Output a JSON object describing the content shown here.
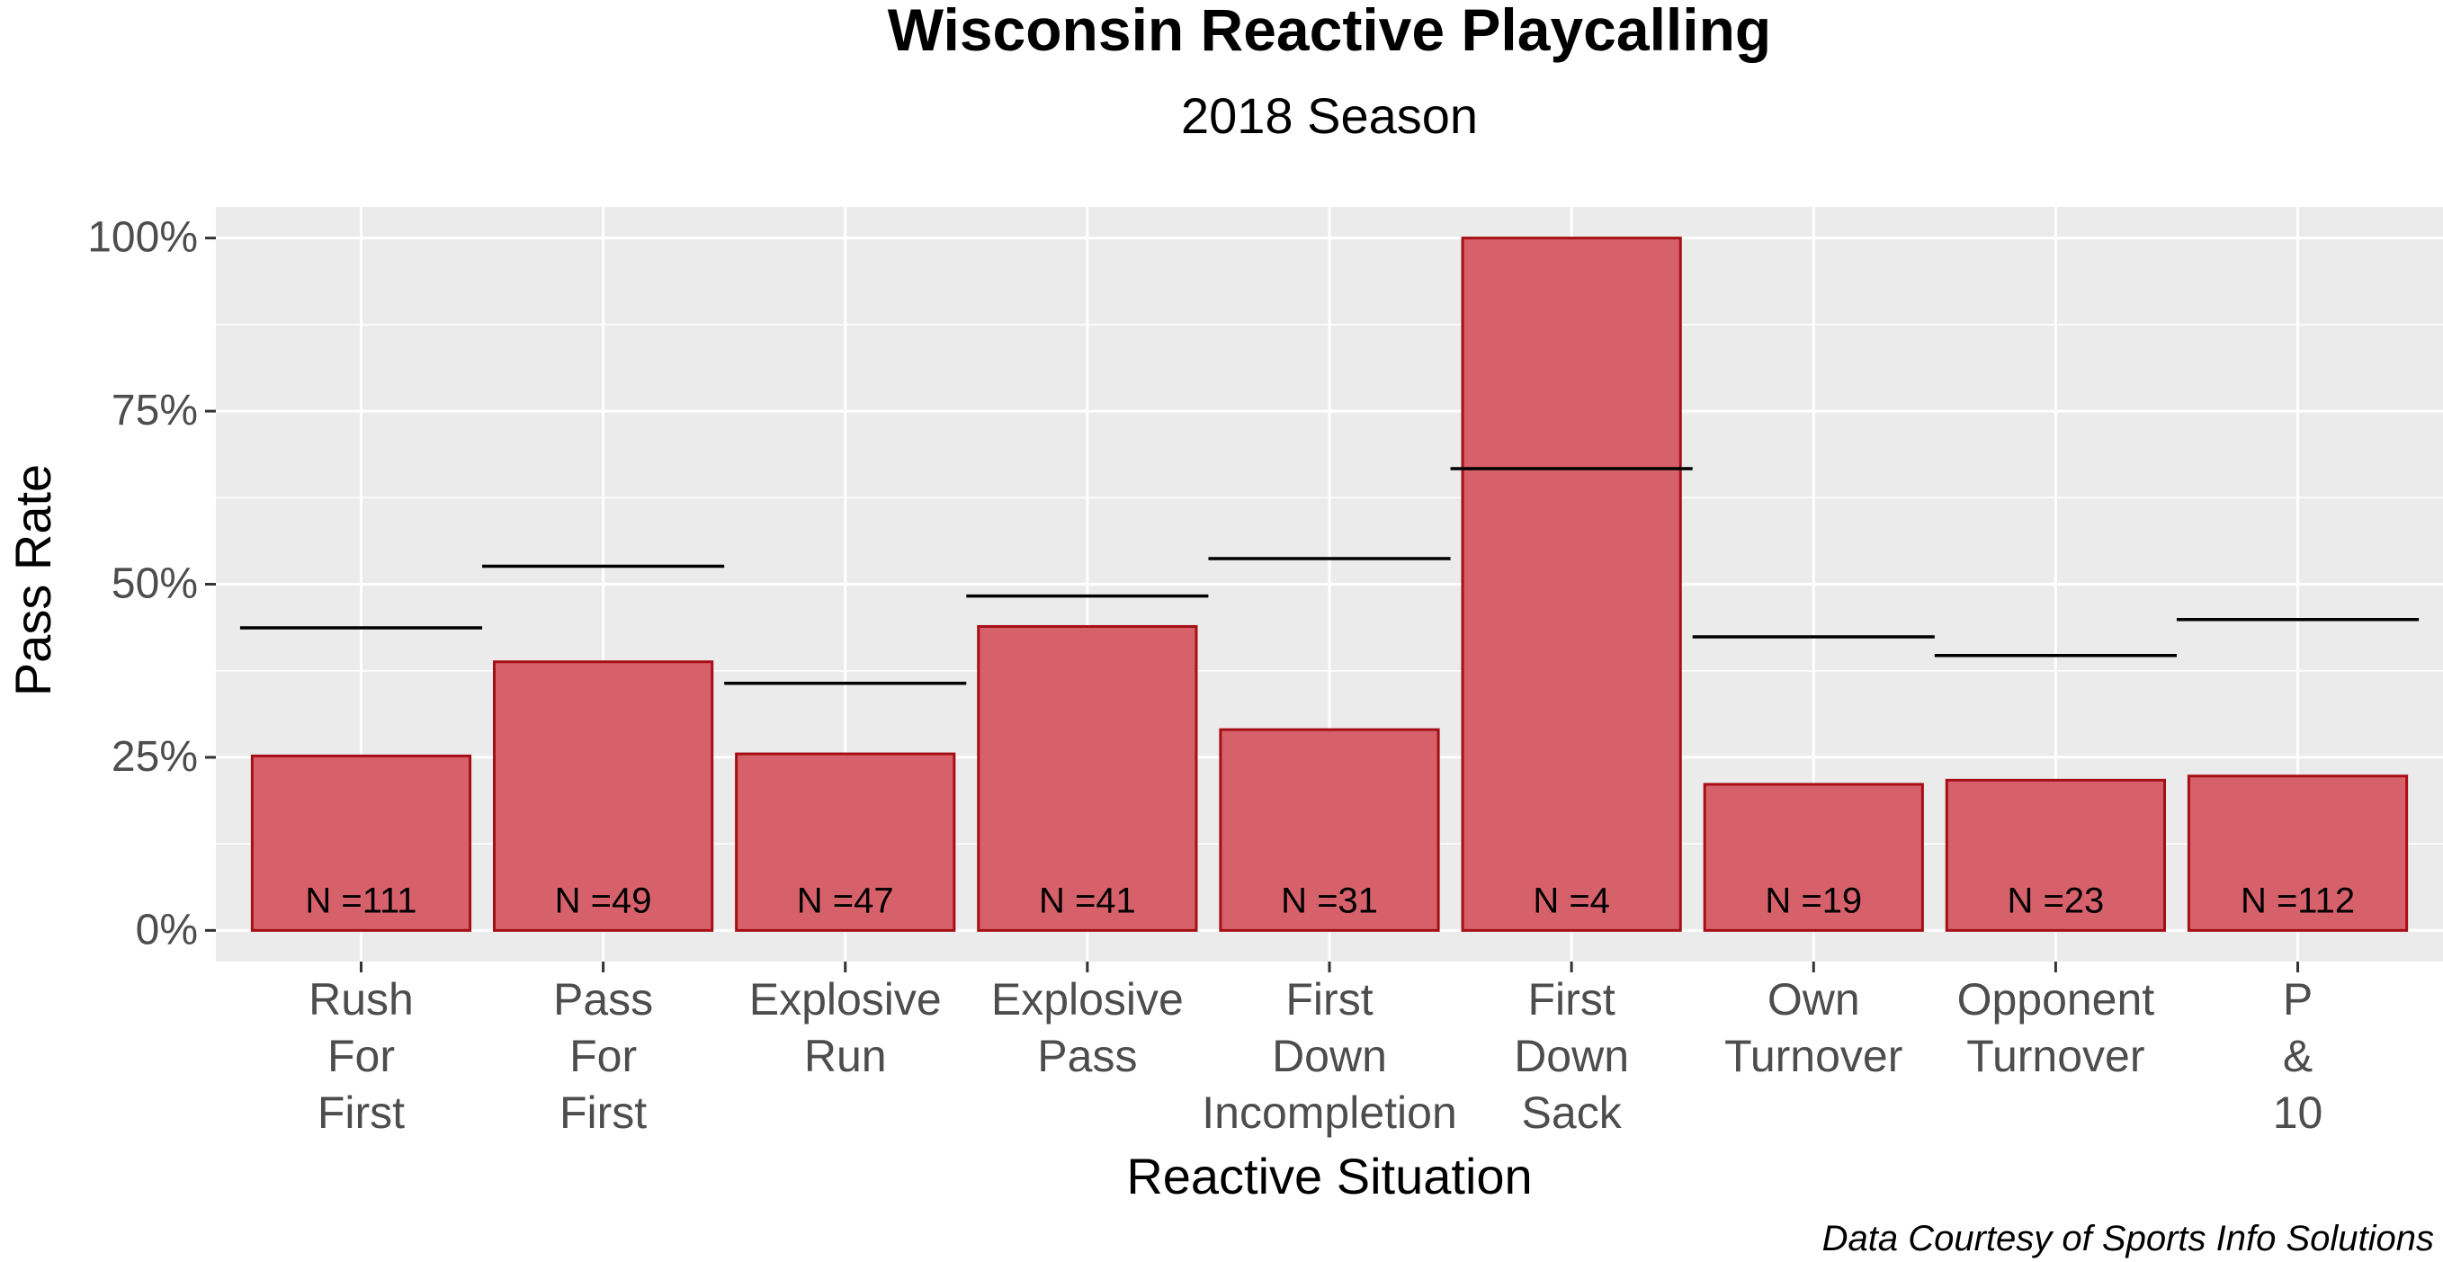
{
  "chart_data": {
    "type": "bar",
    "title": "Wisconsin Reactive Playcalling",
    "subtitle": "2018 Season",
    "xlabel": "Reactive Situation",
    "ylabel": "Pass Rate",
    "caption": "Data Courtesy of Sports Info Solutions",
    "ylim": [
      0,
      1
    ],
    "yticks": [
      0,
      0.25,
      0.5,
      0.75,
      1
    ],
    "ytick_labels": [
      "0%",
      "25%",
      "50%",
      "75%",
      "100%"
    ],
    "grid": true,
    "bar_color": "#d6616b",
    "bar_border_color": "#a50f15",
    "panel_color": "#ebebeb",
    "categories": [
      [
        "Rush",
        "For",
        "First"
      ],
      [
        "Pass",
        "For",
        "First"
      ],
      [
        "Explosive",
        "Run"
      ],
      [
        "Explosive",
        "Pass"
      ],
      [
        "First",
        "Down",
        "Incompletion"
      ],
      [
        "First",
        "Down",
        "Sack"
      ],
      [
        "Own",
        "Turnover"
      ],
      [
        "Opponent",
        "Turnover"
      ],
      [
        "P",
        "&",
        "10"
      ]
    ],
    "values": [
      0.252,
      0.388,
      0.255,
      0.439,
      0.29,
      1.0,
      0.211,
      0.217,
      0.223
    ],
    "reference_values": [
      0.437,
      0.526,
      0.357,
      0.483,
      0.537,
      0.667,
      0.424,
      0.397,
      0.449
    ],
    "n_labels": [
      "N =111",
      "N =49",
      "N =47",
      "N =41",
      "N =31",
      "N =4",
      "N =19",
      "N =23",
      "N =112"
    ]
  }
}
